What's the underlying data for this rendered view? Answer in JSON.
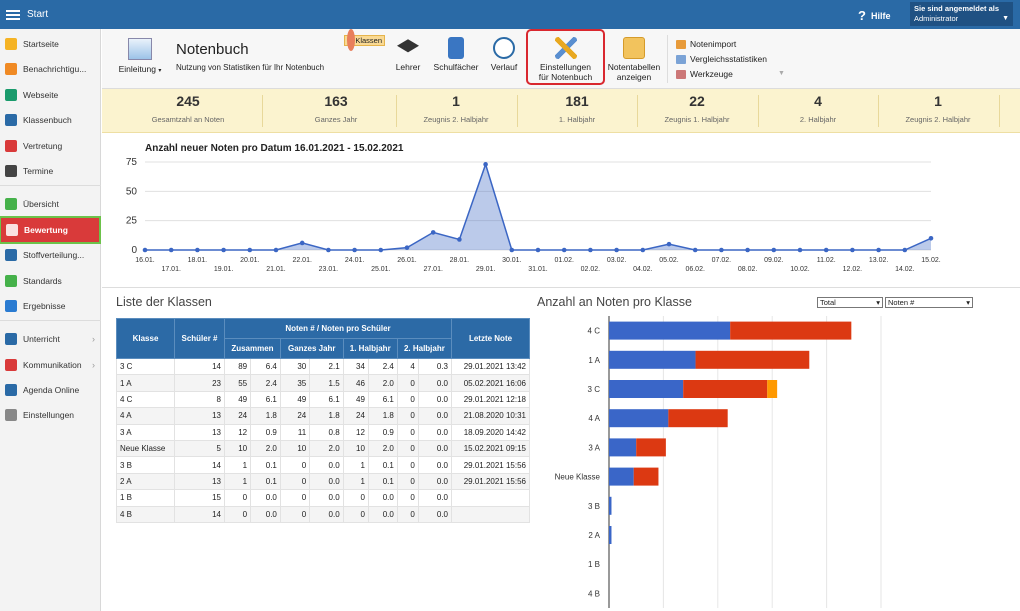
{
  "topbar": {
    "app_title": "Start",
    "help_label": "Hilfe",
    "user_line1": "Sie sind angemeldet als",
    "user_line2": "Administrator"
  },
  "sidebar": {
    "items": [
      {
        "label": "Startseite",
        "icon": "star-icon",
        "color": "#f5b324"
      },
      {
        "label": "Benachrichtigu...",
        "icon": "mail-icon",
        "color": "#f08a24"
      },
      {
        "label": "Webseite",
        "icon": "web-icon",
        "color": "#1a9b6c"
      },
      {
        "label": "Klassenbuch",
        "icon": "book-icon",
        "color": "#2a6aa6"
      },
      {
        "label": "Vertretung",
        "icon": "person-icon",
        "color": "#d93a3a"
      },
      {
        "label": "Termine",
        "icon": "calendar-icon",
        "color": "#444444"
      },
      {
        "label": "Übersicht",
        "icon": "check-icon",
        "color": "#45b14a"
      },
      {
        "label": "Bewertung",
        "icon": "grade-icon",
        "color": "#ffffff"
      },
      {
        "label": "Stoffverteilung...",
        "icon": "list-icon",
        "color": "#2a6aa6"
      },
      {
        "label": "Standards",
        "icon": "shield-icon",
        "color": "#45b14a"
      },
      {
        "label": "Ergebnisse",
        "icon": "barchart-icon",
        "color": "#2a7bd1"
      },
      {
        "label": "Unterricht",
        "icon": "monitor-icon",
        "color": "#2a6aa6"
      },
      {
        "label": "Kommunikation",
        "icon": "chat-icon",
        "color": "#d93a3a"
      },
      {
        "label": "Agenda Online",
        "icon": "pen-icon",
        "color": "#2a6aa6"
      },
      {
        "label": "Einstellungen",
        "icon": "gear-icon",
        "color": "#888888"
      }
    ]
  },
  "toolbar": {
    "einleitung": "Einleitung",
    "title": "Notenbuch",
    "subtitle": "Nutzung von Statistiken für Ihr Notenbuch",
    "buttons": [
      {
        "line1": "Klassen",
        "line2": "",
        "icon": "class-icon"
      },
      {
        "line1": "Lehrer",
        "line2": "",
        "icon": "teacher-icon"
      },
      {
        "line1": "Schulfächer",
        "line2": "",
        "icon": "subject-icon"
      },
      {
        "line1": "Verlauf",
        "line2": "",
        "icon": "clock-icon"
      },
      {
        "line1": "Einstellungen",
        "line2": "für Notenbuch",
        "icon": "tools-icon"
      },
      {
        "line1": "Notentabellen",
        "line2": "anzeigen",
        "icon": "folder-icon"
      }
    ],
    "links": [
      "Notenimport",
      "Vergleichsstatistiken",
      "Werkzeuge"
    ]
  },
  "stats": [
    {
      "value": "245",
      "label": "Gesamtzahl an Noten"
    },
    {
      "value": "163",
      "label": "Ganzes Jahr"
    },
    {
      "value": "1",
      "label": "Zeugnis 2. Halbjahr"
    },
    {
      "value": "181",
      "label": "1. Halbjahr"
    },
    {
      "value": "22",
      "label": "Zeugnis 1. Halbjahr"
    },
    {
      "value": "4",
      "label": "2. Halbjahr"
    },
    {
      "value": "1",
      "label": "Zeugnis 2. Halbjahr"
    }
  ],
  "chart_data": [
    {
      "type": "line",
      "title": "Anzahl neuer Noten pro Datum 16.01.2021 - 15.02.2021",
      "x": [
        "16.01.",
        "17.01.",
        "18.01.",
        "19.01.",
        "20.01.",
        "21.01.",
        "22.01.",
        "23.01.",
        "24.01.",
        "25.01.",
        "26.01.",
        "27.01.",
        "28.01.",
        "29.01.",
        "30.01.",
        "31.01.",
        "01.02.",
        "02.02.",
        "03.02.",
        "04.02.",
        "05.02.",
        "06.02.",
        "07.02.",
        "08.02.",
        "09.02.",
        "10.02.",
        "11.02.",
        "12.02.",
        "13.02.",
        "14.02.",
        "15.02."
      ],
      "series": [
        {
          "values": [
            0,
            0,
            0,
            0,
            0,
            0,
            6,
            0,
            0,
            0,
            2,
            15,
            9,
            73,
            0,
            0,
            0,
            0,
            0,
            0,
            5,
            0,
            0,
            0,
            0,
            0,
            0,
            0,
            0,
            0,
            10
          ]
        }
      ],
      "yticks": [
        0,
        25,
        50,
        75
      ],
      "ylim": [
        0,
        75
      ],
      "grid": true,
      "color": "#3b66c4"
    },
    {
      "type": "bar",
      "title": "Anzahl an Noten pro Klasse",
      "orientation": "horizontal",
      "stacked": true,
      "categories": [
        "4 C",
        "1 A",
        "3 C",
        "4 A",
        "3 A",
        "Neue Klasse",
        "3 B",
        "2 A",
        "1 B",
        "4 B"
      ],
      "series": [
        {
          "values": [
            49,
            35,
            30,
            24,
            11,
            10,
            1,
            1,
            0,
            0
          ],
          "color": "#3a66c8"
        },
        {
          "values": [
            49,
            46,
            34,
            24,
            12,
            10,
            0,
            0,
            0,
            0
          ],
          "color": "#dc3912"
        },
        {
          "values": [
            0,
            0,
            4,
            0,
            0,
            0,
            0,
            0,
            0,
            0
          ],
          "color": "#ff9900"
        }
      ],
      "xlim": [
        0,
        110
      ],
      "grid": true,
      "controls": [
        "Total",
        "Noten #"
      ]
    }
  ],
  "table": {
    "title": "Liste der Klassen",
    "headers": {
      "klasse": "Klasse",
      "schueler": "Schüler #",
      "group": "Noten # / Noten pro Schüler",
      "letzte": "Letzte Note",
      "sub": [
        "Zusammen",
        "Ganzes Jahr",
        "1. Halbjahr",
        "2. Halbjahr"
      ]
    },
    "rows": [
      [
        "3 C",
        "14",
        "89",
        "6.4",
        "30",
        "2.1",
        "34",
        "2.4",
        "4",
        "0.3",
        "29.01.2021 13:42"
      ],
      [
        "1 A",
        "23",
        "55",
        "2.4",
        "35",
        "1.5",
        "46",
        "2.0",
        "0",
        "0.0",
        "05.02.2021 16:06"
      ],
      [
        "4 C",
        "8",
        "49",
        "6.1",
        "49",
        "6.1",
        "49",
        "6.1",
        "0",
        "0.0",
        "29.01.2021 12:18"
      ],
      [
        "4 A",
        "13",
        "24",
        "1.8",
        "24",
        "1.8",
        "24",
        "1.8",
        "0",
        "0.0",
        "21.08.2020 10:31"
      ],
      [
        "3 A",
        "13",
        "12",
        "0.9",
        "11",
        "0.8",
        "12",
        "0.9",
        "0",
        "0.0",
        "18.09.2020 14:42"
      ],
      [
        "Neue Klasse",
        "5",
        "10",
        "2.0",
        "10",
        "2.0",
        "10",
        "2.0",
        "0",
        "0.0",
        "15.02.2021 09:15"
      ],
      [
        "3 B",
        "14",
        "1",
        "0.1",
        "0",
        "0.0",
        "1",
        "0.1",
        "0",
        "0.0",
        "29.01.2021 15:56"
      ],
      [
        "2 A",
        "13",
        "1",
        "0.1",
        "0",
        "0.0",
        "1",
        "0.1",
        "0",
        "0.0",
        "29.01.2021 15:56"
      ],
      [
        "1 B",
        "15",
        "0",
        "0.0",
        "0",
        "0.0",
        "0",
        "0.0",
        "0",
        "0.0",
        ""
      ],
      [
        "4 B",
        "14",
        "0",
        "0.0",
        "0",
        "0.0",
        "0",
        "0.0",
        "0",
        "0.0",
        ""
      ]
    ]
  }
}
